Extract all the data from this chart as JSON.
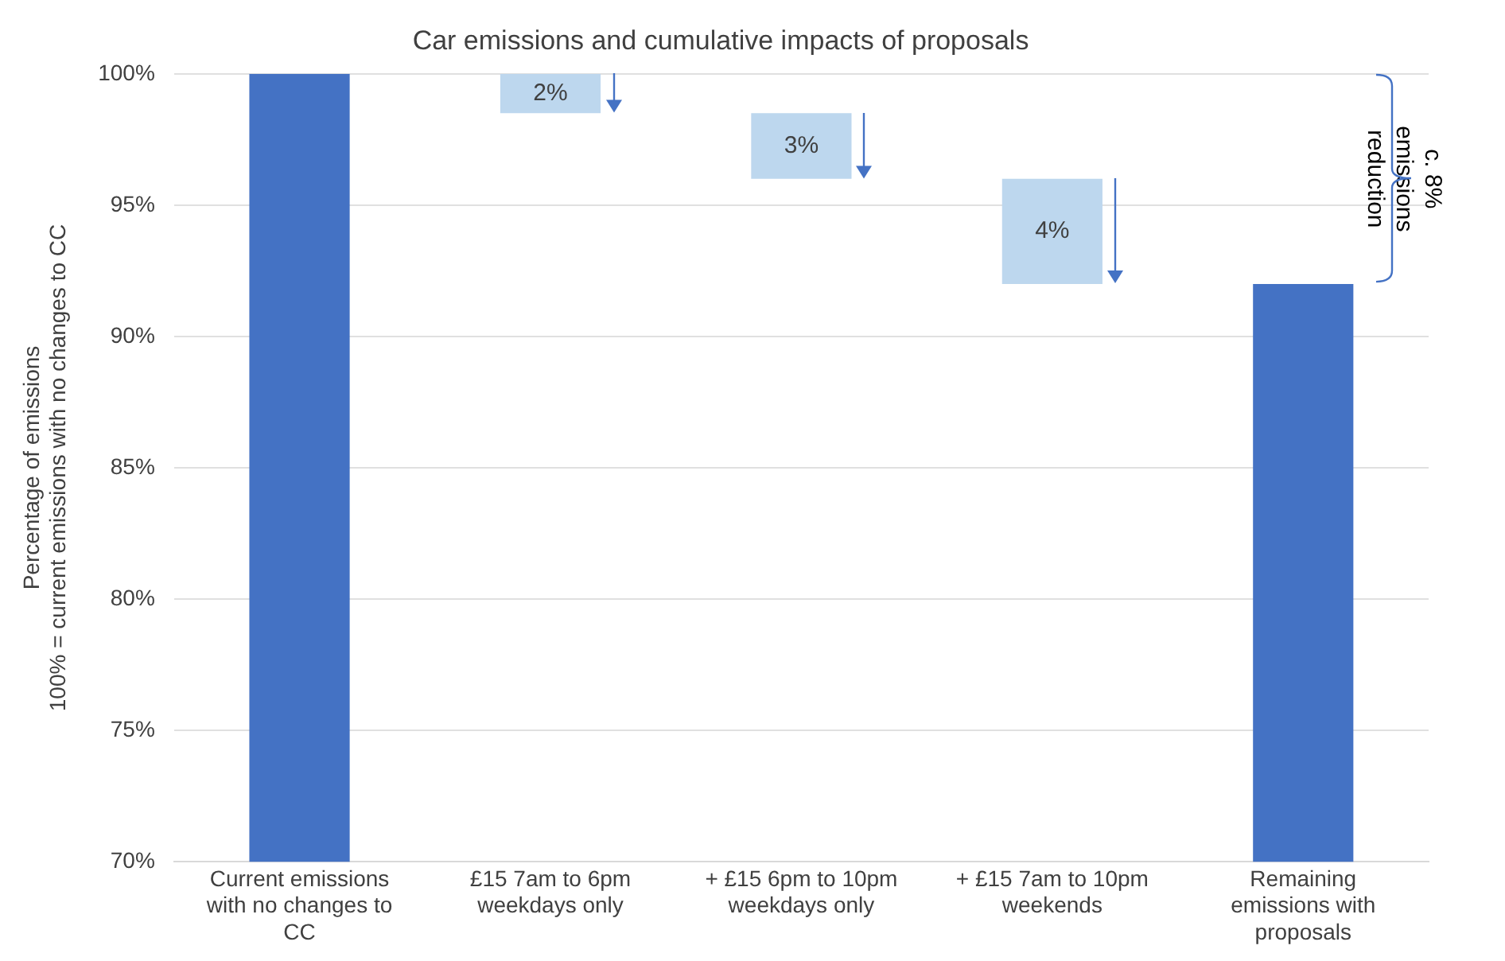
{
  "chart_data": {
    "type": "bar",
    "title": "Car emissions and cumulative impacts of proposals",
    "ylabel": "Percentage of emissions\n100% = current emissions with no changes to CC",
    "categories": [
      "Current emissions with no changes to CC",
      "£15 7am to 6pm weekdays only",
      "+ £15 6pm to 10pm weekdays only",
      "+ £15 7am to 10pm weekends",
      "Remaining emissions with proposals"
    ],
    "values": [
      100,
      1.5,
      2.5,
      4,
      92
    ],
    "base": [
      null,
      98.5,
      96,
      92,
      null
    ],
    "colors": [
      "#4472c4",
      "#bdd7ee",
      "#bdd7ee",
      "#bdd7ee",
      "#4472c4"
    ],
    "value_labels": [
      null,
      "2%",
      "3%",
      "4%",
      null
    ],
    "ylim": [
      70,
      100
    ],
    "yticks": [
      {
        "value": 70,
        "label": "70%"
      },
      {
        "value": 75,
        "label": "75%"
      },
      {
        "value": 80,
        "label": "80%"
      },
      {
        "value": 85,
        "label": "85%"
      },
      {
        "value": 90,
        "label": "90%"
      },
      {
        "value": 95,
        "label": "95%"
      },
      {
        "value": 100,
        "label": "100%"
      }
    ],
    "grid": "y",
    "legend": false,
    "annotations": [
      "c. 8% emissions reduction"
    ]
  }
}
